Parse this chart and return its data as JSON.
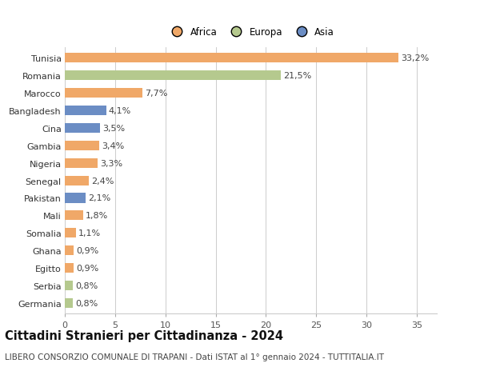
{
  "countries": [
    "Tunisia",
    "Romania",
    "Marocco",
    "Bangladesh",
    "Cina",
    "Gambia",
    "Nigeria",
    "Senegal",
    "Pakistan",
    "Mali",
    "Somalia",
    "Ghana",
    "Egitto",
    "Serbia",
    "Germania"
  ],
  "values": [
    33.2,
    21.5,
    7.7,
    4.1,
    3.5,
    3.4,
    3.3,
    2.4,
    2.1,
    1.8,
    1.1,
    0.9,
    0.9,
    0.8,
    0.8
  ],
  "labels": [
    "33,2%",
    "21,5%",
    "7,7%",
    "4,1%",
    "3,5%",
    "3,4%",
    "3,3%",
    "2,4%",
    "2,1%",
    "1,8%",
    "1,1%",
    "0,9%",
    "0,9%",
    "0,8%",
    "0,8%"
  ],
  "continents": [
    "Africa",
    "Europa",
    "Africa",
    "Asia",
    "Asia",
    "Africa",
    "Africa",
    "Africa",
    "Asia",
    "Africa",
    "Africa",
    "Africa",
    "Africa",
    "Europa",
    "Europa"
  ],
  "colors": {
    "Africa": "#F0A868",
    "Europa": "#B5C98E",
    "Asia": "#6B8DC4"
  },
  "legend_order": [
    "Africa",
    "Europa",
    "Asia"
  ],
  "xlim": [
    0,
    37
  ],
  "xticks": [
    0,
    5,
    10,
    15,
    20,
    25,
    30,
    35
  ],
  "title": "Cittadini Stranieri per Cittadinanza - 2024",
  "subtitle": "LIBERO CONSORZIO COMUNALE DI TRAPANI - Dati ISTAT al 1° gennaio 2024 - TUTTITALIA.IT",
  "background_color": "#ffffff",
  "grid_color": "#cccccc",
  "bar_height": 0.55,
  "label_fontsize": 8,
  "tick_fontsize": 8,
  "title_fontsize": 10.5,
  "subtitle_fontsize": 7.5
}
